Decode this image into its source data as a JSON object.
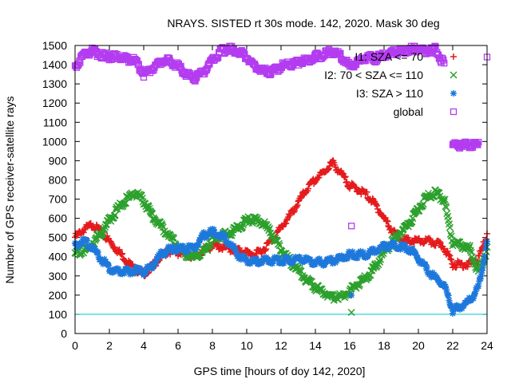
{
  "chart_data": {
    "type": "scatter",
    "title": "NRAYS. SISTED rt 30s mode. 142, 2020. Mask 30 deg",
    "xlabel": "GPS time [hours of doy 142, 2020]",
    "ylabel": "Number of GPS receiver-satellite rays",
    "xlim": [
      0,
      24
    ],
    "ylim": [
      0,
      1500
    ],
    "xticks": [
      0,
      2,
      4,
      6,
      8,
      10,
      12,
      14,
      16,
      18,
      20,
      22,
      24
    ],
    "yticks": [
      0,
      100,
      200,
      300,
      400,
      500,
      600,
      700,
      800,
      900,
      1000,
      1100,
      1200,
      1300,
      1400,
      1500
    ],
    "grid": false,
    "legend_position": "top-right",
    "reference_line": {
      "y": 100,
      "color": "#00c8c8"
    },
    "series": [
      {
        "name": "I1: SZA <= 70",
        "marker": "+",
        "color": "#e41a1c",
        "x": [
          0,
          0.5,
          1,
          1.5,
          2,
          2.5,
          3,
          3.5,
          4,
          4.5,
          5,
          5.5,
          6,
          6.5,
          7,
          7.5,
          8,
          8.5,
          9,
          9.5,
          10,
          10.5,
          11,
          11.5,
          12,
          12.5,
          13,
          13.5,
          14,
          14.5,
          15,
          15.5,
          16,
          16.5,
          17,
          17.5,
          18,
          18.5,
          19,
          19.5,
          20,
          20.5,
          21,
          21.5,
          22,
          22.5,
          23,
          23.5,
          24
        ],
        "y": [
          510,
          550,
          575,
          540,
          490,
          440,
          390,
          340,
          320,
          360,
          410,
          440,
          430,
          420,
          410,
          440,
          470,
          460,
          450,
          440,
          430,
          420,
          450,
          500,
          560,
          620,
          690,
          760,
          810,
          850,
          900,
          840,
          780,
          760,
          730,
          680,
          610,
          540,
          500,
          490,
          490,
          490,
          480,
          460,
          370,
          370,
          370,
          400,
          520
        ]
      },
      {
        "name": "I2: 70 < SZA <= 110",
        "marker": "x",
        "color": "#2ca02c",
        "x": [
          0,
          0.5,
          1,
          1.5,
          2,
          2.5,
          3,
          3.5,
          4,
          4.5,
          5,
          5.5,
          6,
          6.5,
          7,
          7.5,
          8,
          8.5,
          9,
          9.5,
          10,
          10.5,
          11,
          11.5,
          12,
          12.5,
          13,
          13.5,
          14,
          14.5,
          15,
          15.5,
          16,
          16.5,
          17,
          17.5,
          18,
          18.5,
          19,
          19.5,
          20,
          20.5,
          21,
          21.5,
          22,
          22.5,
          23,
          23.5,
          24
        ],
        "y": [
          420,
          440,
          470,
          530,
          600,
          660,
          710,
          740,
          700,
          620,
          570,
          520,
          460,
          420,
          410,
          430,
          500,
          520,
          530,
          560,
          600,
          600,
          580,
          520,
          450,
          390,
          340,
          290,
          250,
          220,
          200,
          200,
          230,
          270,
          300,
          360,
          430,
          490,
          540,
          590,
          660,
          720,
          740,
          710,
          480,
          470,
          450,
          330,
          450
        ]
      },
      {
        "name": "I3: SZA > 110",
        "marker": "*",
        "color": "#1e78dc",
        "x": [
          0,
          0.5,
          1,
          1.5,
          2,
          2.5,
          3,
          3.5,
          4,
          4.5,
          5,
          5.5,
          6,
          6.5,
          7,
          7.5,
          8,
          8.5,
          9,
          9.5,
          10,
          10.5,
          11,
          11.5,
          12,
          12.5,
          13,
          13.5,
          14,
          14.5,
          15,
          15.5,
          16,
          16.5,
          17,
          17.5,
          18,
          18.5,
          19,
          19.5,
          20,
          20.5,
          21,
          21.5,
          22,
          22.5,
          23,
          23.5,
          24
        ],
        "y": [
          470,
          490,
          460,
          400,
          350,
          330,
          330,
          340,
          330,
          360,
          420,
          450,
          450,
          450,
          460,
          520,
          540,
          520,
          480,
          420,
          390,
          380,
          390,
          390,
          390,
          390,
          400,
          390,
          380,
          380,
          390,
          400,
          420,
          420,
          420,
          440,
          460,
          470,
          460,
          450,
          400,
          340,
          300,
          260,
          130,
          150,
          180,
          250,
          480
        ]
      },
      {
        "name": "global",
        "marker": "square",
        "color": "#b43cf0",
        "x": [
          0,
          0.5,
          1,
          1.5,
          2,
          2.5,
          3,
          3.5,
          4,
          4.5,
          5,
          5.5,
          6,
          6.5,
          7,
          7.5,
          8,
          8.5,
          9,
          9.5,
          10,
          10.5,
          11,
          11.5,
          12,
          12.5,
          13,
          13.5,
          14,
          14.5,
          15,
          15.5,
          16,
          16.5,
          17,
          17.5,
          18,
          18.5,
          19,
          19.5,
          20,
          20.5,
          21,
          21.5,
          22,
          22.5,
          23,
          23.5,
          24
        ],
        "y": [
          1400,
          1460,
          1480,
          1460,
          1450,
          1450,
          1440,
          1430,
          1360,
          1390,
          1420,
          1430,
          1400,
          1360,
          1340,
          1370,
          1430,
          1480,
          1490,
          1480,
          1450,
          1400,
          1380,
          1370,
          1400,
          1410,
          1420,
          1430,
          1450,
          1460,
          1480,
          1450,
          1400,
          1420,
          1450,
          1440,
          1460,
          1470,
          1480,
          1490,
          1490,
          1480,
          1490,
          1410,
          990,
          990,
          990,
          990,
          1440
        ]
      }
    ],
    "outliers": [
      {
        "series": "I2: 70 < SZA <= 110",
        "x": 16.1,
        "y": 110
      },
      {
        "series": "I3: SZA > 110",
        "x": 16.1,
        "y": 200
      },
      {
        "series": "global",
        "x": 16.1,
        "y": 560
      }
    ]
  }
}
